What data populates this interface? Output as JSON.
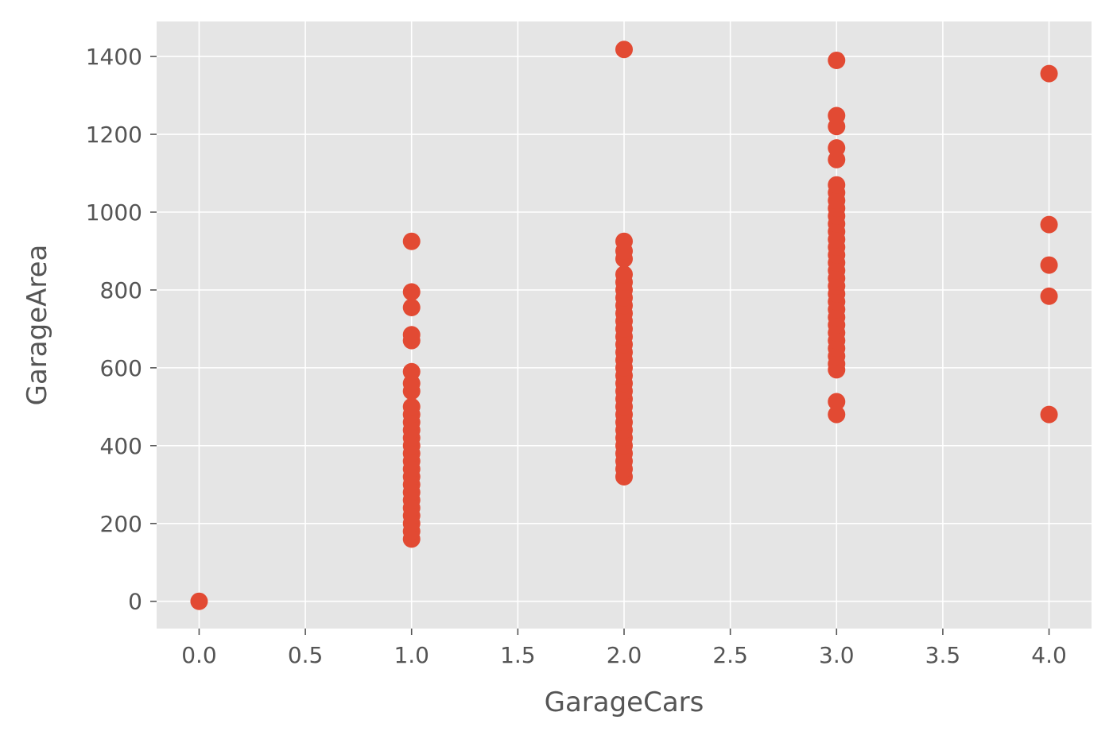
{
  "chart_data": {
    "type": "scatter",
    "xlabel": "GarageCars",
    "ylabel": "GarageArea",
    "xlim": [
      -0.2,
      4.2
    ],
    "ylim": [
      -70,
      1490
    ],
    "xticks": [
      0.0,
      0.5,
      1.0,
      1.5,
      2.0,
      2.5,
      3.0,
      3.5,
      4.0
    ],
    "xtick_labels": [
      "0.0",
      "0.5",
      "1.0",
      "1.5",
      "2.0",
      "2.5",
      "3.0",
      "3.5",
      "4.0"
    ],
    "yticks": [
      0,
      200,
      400,
      600,
      800,
      1000,
      1200,
      1400
    ],
    "ytick_labels": [
      "0",
      "200",
      "400",
      "600",
      "800",
      "1000",
      "1200",
      "1400"
    ],
    "grid": true,
    "style": {
      "background": "#e5e5e5",
      "grid_color": "#ffffff",
      "marker_color": "#e24a33"
    },
    "series": [
      {
        "points": [
          [
            0,
            0
          ],
          [
            1,
            160
          ],
          [
            1,
            180
          ],
          [
            1,
            200
          ],
          [
            1,
            220
          ],
          [
            1,
            240
          ],
          [
            1,
            260
          ],
          [
            1,
            280
          ],
          [
            1,
            300
          ],
          [
            1,
            320
          ],
          [
            1,
            340
          ],
          [
            1,
            360
          ],
          [
            1,
            380
          ],
          [
            1,
            400
          ],
          [
            1,
            420
          ],
          [
            1,
            440
          ],
          [
            1,
            460
          ],
          [
            1,
            480
          ],
          [
            1,
            500
          ],
          [
            1,
            540
          ],
          [
            1,
            560
          ],
          [
            1,
            590
          ],
          [
            1,
            670
          ],
          [
            1,
            685
          ],
          [
            1,
            755
          ],
          [
            1,
            795
          ],
          [
            1,
            925
          ],
          [
            2,
            320
          ],
          [
            2,
            340
          ],
          [
            2,
            360
          ],
          [
            2,
            380
          ],
          [
            2,
            400
          ],
          [
            2,
            420
          ],
          [
            2,
            440
          ],
          [
            2,
            460
          ],
          [
            2,
            480
          ],
          [
            2,
            500
          ],
          [
            2,
            520
          ],
          [
            2,
            540
          ],
          [
            2,
            560
          ],
          [
            2,
            580
          ],
          [
            2,
            600
          ],
          [
            2,
            620
          ],
          [
            2,
            640
          ],
          [
            2,
            660
          ],
          [
            2,
            680
          ],
          [
            2,
            700
          ],
          [
            2,
            720
          ],
          [
            2,
            740
          ],
          [
            2,
            760
          ],
          [
            2,
            780
          ],
          [
            2,
            800
          ],
          [
            2,
            820
          ],
          [
            2,
            840
          ],
          [
            2,
            880
          ],
          [
            2,
            900
          ],
          [
            2,
            925
          ],
          [
            2,
            1418
          ],
          [
            3,
            480
          ],
          [
            3,
            513
          ],
          [
            3,
            595
          ],
          [
            3,
            610
          ],
          [
            3,
            630
          ],
          [
            3,
            650
          ],
          [
            3,
            670
          ],
          [
            3,
            690
          ],
          [
            3,
            710
          ],
          [
            3,
            730
          ],
          [
            3,
            750
          ],
          [
            3,
            770
          ],
          [
            3,
            790
          ],
          [
            3,
            810
          ],
          [
            3,
            830
          ],
          [
            3,
            850
          ],
          [
            3,
            870
          ],
          [
            3,
            890
          ],
          [
            3,
            910
          ],
          [
            3,
            930
          ],
          [
            3,
            950
          ],
          [
            3,
            970
          ],
          [
            3,
            990
          ],
          [
            3,
            1010
          ],
          [
            3,
            1030
          ],
          [
            3,
            1050
          ],
          [
            3,
            1070
          ],
          [
            3,
            1135
          ],
          [
            3,
            1165
          ],
          [
            3,
            1220
          ],
          [
            3,
            1248
          ],
          [
            3,
            1390
          ],
          [
            4,
            480
          ],
          [
            4,
            784
          ],
          [
            4,
            864
          ],
          [
            4,
            968
          ],
          [
            4,
            1356
          ]
        ]
      }
    ]
  }
}
